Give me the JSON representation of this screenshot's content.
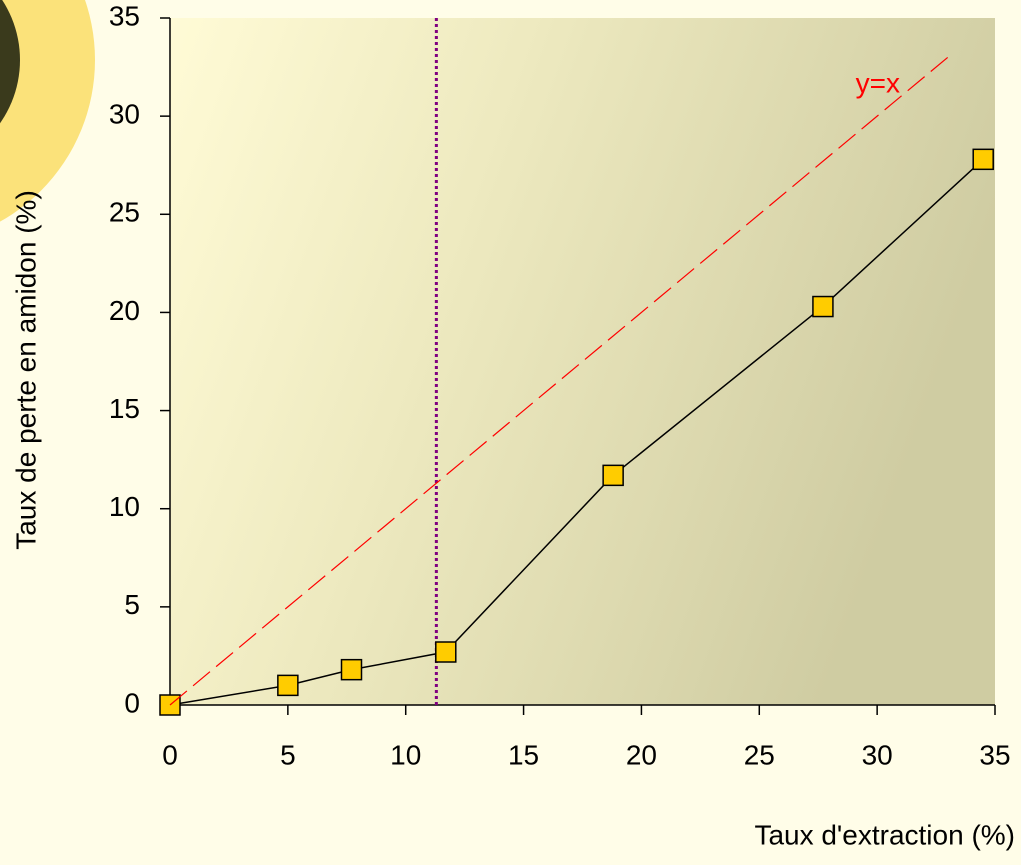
{
  "chart_data": {
    "type": "line",
    "x_label": "Taux d'extraction (%)",
    "y_label": "Taux de perte en amidon (%)",
    "xlim": [
      0,
      35
    ],
    "ylim": [
      0,
      35
    ],
    "xticks": [
      0,
      5,
      10,
      15,
      20,
      25,
      30,
      35
    ],
    "yticks": [
      0,
      5,
      10,
      15,
      20,
      25,
      30,
      35
    ],
    "series": [
      {
        "color": "#000000",
        "marker_color": "#ffcc00",
        "marker": "square",
        "x": [
          0,
          5,
          7.7,
          11.7,
          18.8,
          27.7,
          34.5
        ],
        "values": [
          0,
          1.0,
          1.8,
          2.7,
          11.7,
          20.3,
          27.8
        ]
      },
      {
        "name": "y=x",
        "color": "#ff0000",
        "dashed": true,
        "x": [
          0,
          33
        ],
        "values": [
          0,
          33
        ]
      }
    ],
    "vline": {
      "x": 11.3,
      "color": "#800080"
    }
  }
}
